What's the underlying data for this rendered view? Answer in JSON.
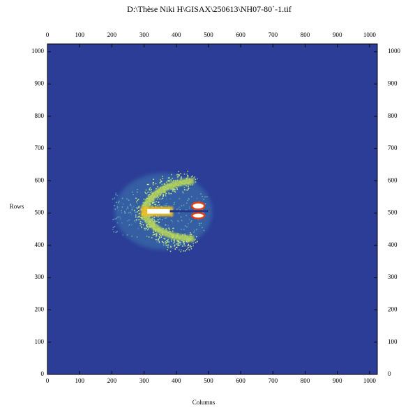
{
  "chart_data": {
    "type": "image",
    "title": "D:\\Thèse Niki H\\GISAX\\250613\\NH07-80`-1.tif",
    "xlabel": "Columns",
    "ylabel": "Rows",
    "xlim": [
      0,
      1024
    ],
    "ylim": [
      0,
      1024
    ],
    "xticks": [
      0,
      100,
      200,
      300,
      400,
      500,
      600,
      700,
      800,
      900,
      1000
    ],
    "yticks": [
      0,
      100,
      200,
      300,
      400,
      500,
      600,
      700,
      800,
      900,
      1000
    ],
    "background_color": "#2b3d97"
  }
}
